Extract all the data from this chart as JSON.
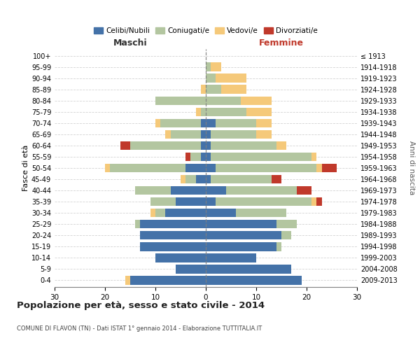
{
  "age_groups": [
    "0-4",
    "5-9",
    "10-14",
    "15-19",
    "20-24",
    "25-29",
    "30-34",
    "35-39",
    "40-44",
    "45-49",
    "50-54",
    "55-59",
    "60-64",
    "65-69",
    "70-74",
    "75-79",
    "80-84",
    "85-89",
    "90-94",
    "95-99",
    "100+"
  ],
  "birth_years": [
    "2009-2013",
    "2004-2008",
    "1999-2003",
    "1994-1998",
    "1989-1993",
    "1984-1988",
    "1979-1983",
    "1974-1978",
    "1969-1973",
    "1964-1968",
    "1959-1963",
    "1954-1958",
    "1949-1953",
    "1944-1948",
    "1939-1943",
    "1934-1938",
    "1929-1933",
    "1924-1928",
    "1919-1923",
    "1914-1918",
    "≤ 1913"
  ],
  "maschi": {
    "celibi": [
      15,
      6,
      10,
      13,
      13,
      13,
      8,
      6,
      7,
      2,
      4,
      1,
      1,
      1,
      1,
      0,
      0,
      0,
      0,
      0,
      0
    ],
    "coniugati": [
      0,
      0,
      0,
      0,
      0,
      1,
      2,
      5,
      7,
      2,
      15,
      2,
      14,
      6,
      8,
      1,
      10,
      0,
      0,
      0,
      0
    ],
    "vedovi": [
      1,
      0,
      0,
      0,
      0,
      0,
      1,
      0,
      0,
      1,
      1,
      0,
      0,
      1,
      1,
      1,
      0,
      1,
      0,
      0,
      0
    ],
    "divorziati": [
      0,
      0,
      0,
      0,
      0,
      0,
      0,
      0,
      0,
      0,
      0,
      1,
      2,
      0,
      0,
      0,
      0,
      0,
      0,
      0,
      0
    ]
  },
  "femmine": {
    "nubili": [
      19,
      17,
      10,
      14,
      15,
      14,
      6,
      2,
      4,
      1,
      2,
      1,
      1,
      1,
      2,
      0,
      0,
      0,
      0,
      0,
      0
    ],
    "coniugate": [
      0,
      0,
      0,
      1,
      2,
      4,
      10,
      19,
      14,
      12,
      20,
      20,
      13,
      9,
      8,
      8,
      7,
      3,
      2,
      1,
      0
    ],
    "vedove": [
      0,
      0,
      0,
      0,
      0,
      0,
      0,
      1,
      0,
      0,
      1,
      1,
      2,
      3,
      3,
      5,
      6,
      5,
      6,
      2,
      0
    ],
    "divorziate": [
      0,
      0,
      0,
      0,
      0,
      0,
      0,
      1,
      3,
      2,
      3,
      0,
      0,
      0,
      0,
      0,
      0,
      0,
      0,
      0,
      0
    ]
  },
  "colors": {
    "celibi": "#4472a8",
    "coniugati": "#b3c6a0",
    "vedovi": "#f5c97a",
    "divorziati": "#c0392b"
  },
  "title": "Popolazione per età, sesso e stato civile - 2014",
  "subtitle": "COMUNE DI FLAVON (TN) - Dati ISTAT 1° gennaio 2014 - Elaborazione TUTTITALIA.IT",
  "xlabel_left": "Maschi",
  "xlabel_right": "Femmine",
  "ylabel_left": "Fasce di età",
  "ylabel_right": "Anni di nascita",
  "xlim": 30,
  "legend_labels": [
    "Celibi/Nubili",
    "Coniugati/e",
    "Vedovi/e",
    "Divorziati/e"
  ]
}
